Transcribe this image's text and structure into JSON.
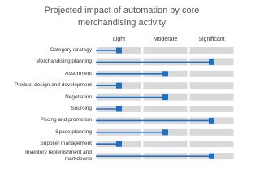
{
  "chart_data": {
    "type": "dot-bar",
    "title": "Projected impact of automation by core merchandising activity",
    "categories": [
      "Category strategy",
      "Merchandising planning",
      "Assortment",
      "Product design and development",
      "Negotiation",
      "Sourcing",
      "Pricing and promotion",
      "Space planning",
      "Supplier management",
      "Inventory replenishment and markdowns"
    ],
    "values": [
      1,
      3,
      2,
      1,
      2,
      1,
      3,
      2,
      1,
      3
    ],
    "color": "#1f6fc5",
    "xlim": [
      0.5,
      3.5
    ],
    "xticks": [
      {
        "value": 1,
        "label": "Light"
      },
      {
        "value": 2,
        "label": "Moderate"
      },
      {
        "value": 3,
        "label": "Significant"
      }
    ],
    "grid": true
  }
}
